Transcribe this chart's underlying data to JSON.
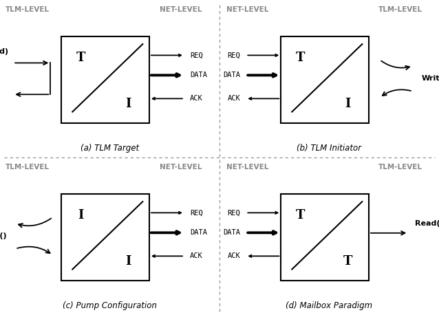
{
  "panels": [
    {
      "id": "a",
      "title": "(a) TLM Target",
      "left_label": "TLM-LEVEL",
      "right_label": "NET-LEVEL",
      "inner_top_label": "T",
      "inner_bot_label": "I",
      "right_signals": [
        {
          "label": "REQ",
          "row": 0,
          "arrow_dir": "right",
          "thick": false
        },
        {
          "label": "DATA",
          "row": 1,
          "arrow_dir": "right",
          "thick": true
        },
        {
          "label": "ACK",
          "row": 2,
          "arrow_dir": "left",
          "thick": false
        }
      ],
      "left_signals": [],
      "tlm_arrow": "write_target",
      "net_arrow": "none"
    },
    {
      "id": "b",
      "title": "(b) TLM Initiator",
      "left_label": "NET-LEVEL",
      "right_label": "TLM-LEVEL",
      "inner_top_label": "T",
      "inner_bot_label": "I",
      "left_signals": [
        {
          "label": "REQ",
          "row": 0,
          "arrow_dir": "right",
          "thick": false
        },
        {
          "label": "DATA",
          "row": 1,
          "arrow_dir": "right",
          "thick": true
        },
        {
          "label": "ACK",
          "row": 2,
          "arrow_dir": "left",
          "thick": false
        }
      ],
      "right_signals": [],
      "tlm_arrow": "none",
      "net_arrow": "write_initiator"
    },
    {
      "id": "c",
      "title": "(c) Pump Configuration",
      "left_label": "TLM-LEVEL",
      "right_label": "NET-LEVEL",
      "inner_top_label": "I",
      "inner_bot_label": "I",
      "right_signals": [
        {
          "label": "REQ",
          "row": 0,
          "arrow_dir": "right",
          "thick": false
        },
        {
          "label": "DATA",
          "row": 1,
          "arrow_dir": "right",
          "thick": true
        },
        {
          "label": "ACK",
          "row": 2,
          "arrow_dir": "left",
          "thick": false
        }
      ],
      "left_signals": [],
      "tlm_arrow": "read_pump",
      "net_arrow": "none"
    },
    {
      "id": "d",
      "title": "(d) Mailbox Paradigm",
      "left_label": "NET-LEVEL",
      "right_label": "TLM-LEVEL",
      "inner_top_label": "T",
      "inner_bot_label": "T",
      "left_signals": [
        {
          "label": "REQ",
          "row": 0,
          "arrow_dir": "right",
          "thick": false
        },
        {
          "label": "DATA",
          "row": 1,
          "arrow_dir": "right",
          "thick": true
        },
        {
          "label": "ACK",
          "row": 2,
          "arrow_dir": "left",
          "thick": false
        }
      ],
      "right_signals": [],
      "tlm_arrow": "none",
      "net_arrow": "read_mailbox"
    }
  ],
  "divider_color": "#999999",
  "label_color": "#888888",
  "bg_color": "#ffffff"
}
